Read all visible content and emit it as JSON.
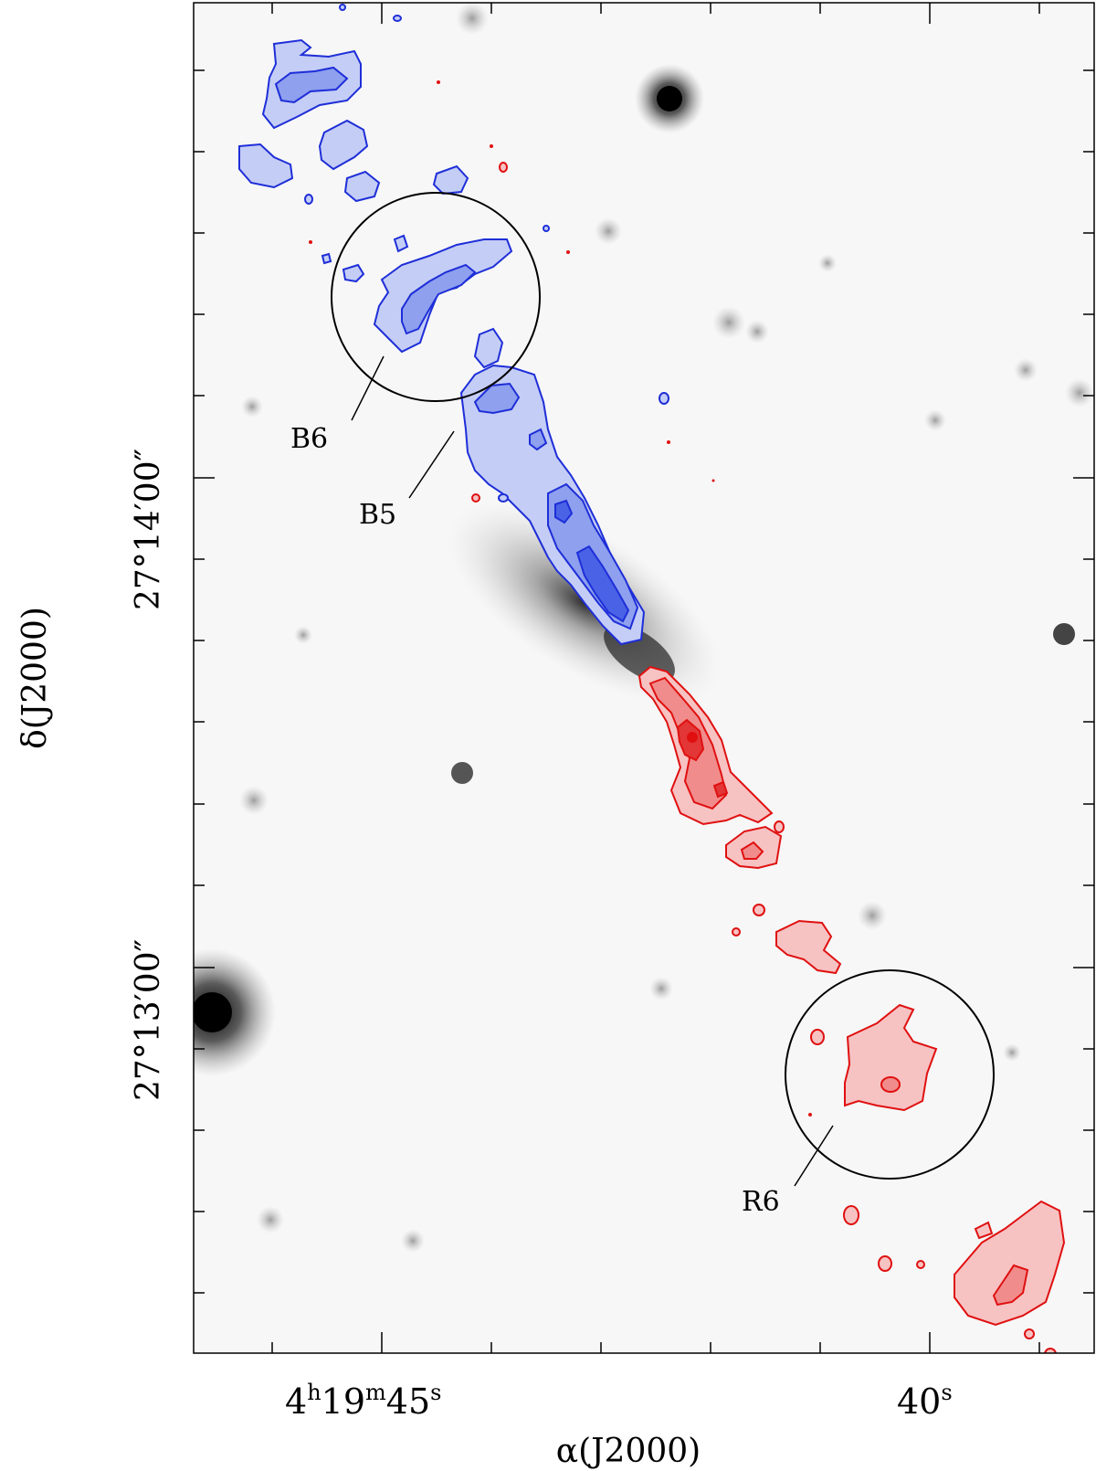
{
  "figure": {
    "x_axis_label": "α(J2000)",
    "y_axis_label": "δ(J2000)",
    "x_ticks": [
      {
        "h": "4",
        "m": "19",
        "s": "45"
      },
      {
        "s": "40"
      }
    ],
    "y_ticks": [
      "27°14′00″",
      "27°13′00″"
    ],
    "knots": [
      "B6",
      "B5",
      "R6"
    ]
  },
  "colors": {
    "blue_lobe": "#1e2ed8",
    "blue_fill_light": "#c4cdf5",
    "blue_fill_mid": "#8ea0ee",
    "blue_fill_dark": "#4a63e6",
    "red_lobe": "#e01010",
    "red_fill_light": "#f7c2c2",
    "red_fill_mid": "#f08c8c",
    "red_fill_dark": "#e33636",
    "background_image": "greyscale"
  }
}
